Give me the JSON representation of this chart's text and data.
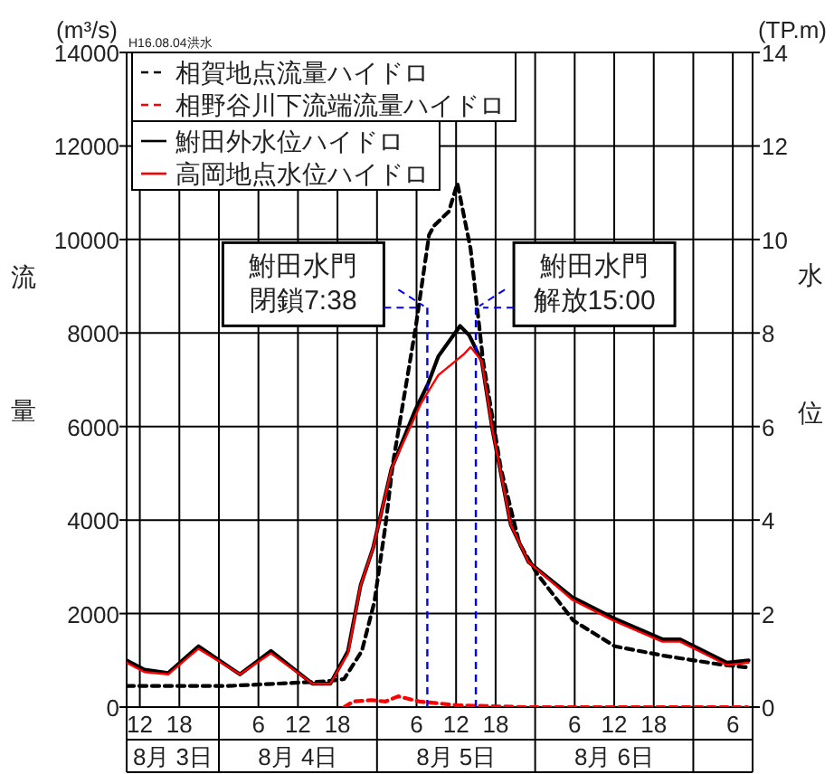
{
  "chart_data": {
    "type": "line",
    "title": "H16.08.04洪水",
    "ylabel": "流量",
    "y2label": "水位",
    "xlim": [
      "--08-03T10:00",
      "--08-07T09:00"
    ],
    "xticks": [
      {
        "value": "--08-03T12:00",
        "label": "12"
      },
      {
        "value": "--08-03T18:00",
        "label": "18"
      },
      {
        "value": "--08-04T00:00",
        "label": null
      },
      {
        "value": "--08-04T06:00",
        "label": "6"
      },
      {
        "value": "--08-04T12:00",
        "label": "12"
      },
      {
        "value": "--08-04T18:00",
        "label": "18"
      },
      {
        "value": "--08-05T00:00",
        "label": null
      },
      {
        "value": "--08-05T06:00",
        "label": "6"
      },
      {
        "value": "--08-05T12:00",
        "label": "12"
      },
      {
        "value": "--08-05T18:00",
        "label": "18"
      },
      {
        "value": "--08-06T00:00",
        "label": null
      },
      {
        "value": "--08-06T06:00",
        "label": "6"
      },
      {
        "value": "--08-06T12:00",
        "label": "12"
      },
      {
        "value": "--08-06T18:00",
        "label": "18"
      },
      {
        "value": "--08-07T00:00",
        "label": null
      },
      {
        "value": "--08-07T06:00",
        "label": "6"
      }
    ],
    "ylim": [
      0,
      14000
    ],
    "yticks": [
      0,
      2000,
      4000,
      6000,
      8000,
      10000,
      12000,
      14000
    ],
    "y2lim": [
      0,
      14
    ],
    "y2ticks": [
      0,
      2,
      4,
      6,
      8,
      10,
      12,
      14
    ],
    "grid": true,
    "legend": "top left",
    "series": [
      {
        "name": "相賀地点流量ハイドロ",
        "color": "#000000",
        "line_style": "dashed",
        "x": [
          "--08-03T10:00",
          "--08-04T01:06",
          "--08-04T16:12",
          "--08-04T19:00",
          "--08-04T21:42",
          "--08-04T23:36",
          "--08-05T01:18",
          "--08-05T02:24",
          "--08-05T05:54",
          "--08-05T07:54",
          "--08-05T08:42",
          "--08-05T10:54",
          "--08-05T12:12",
          "--08-05T14:12",
          "--08-05T16:06",
          "--08-05T18:48",
          "--08-05T21:36",
          "--08-06T00:18",
          "--08-06T05:48",
          "--08-06T12:06",
          "--08-06T19:30",
          "--08-07T04:36",
          "--08-07T08:12"
        ],
        "values": [
          450,
          450,
          550,
          600,
          1200,
          2250,
          3900,
          5200,
          8150,
          10100,
          10300,
          10600,
          11200,
          9800,
          7400,
          5100,
          3500,
          2850,
          1850,
          1300,
          1100,
          900,
          850
        ]
      },
      {
        "name": "相野谷川下流端流量ハイドロ",
        "color": "#ff0000",
        "line_style": "dashed",
        "x": [
          "--08-04T19:00",
          "--08-04T20:24",
          "--08-04T23:06",
          "--08-05T01:18",
          "--08-05T03:12",
          "--08-05T06:24",
          "--08-05T12:12",
          "--08-05T22:00",
          "--08-06T13:00",
          "--08-07T08:12"
        ],
        "values": [
          0,
          120,
          150,
          120,
          230,
          120,
          40,
          0,
          0,
          0
        ]
      },
      {
        "name": "鮒田外水位ハイドロ",
        "color": "#000000",
        "line_style": "solid",
        "axis": "y2",
        "x": [
          "--08-03T10:00",
          "--08-03T12:42",
          "--08-03T16:18",
          "--08-03T20:54",
          "--08-04T03:12",
          "--08-04T07:54",
          "--08-04T14:12",
          "--08-04T16:54",
          "--08-04T19:36",
          "--08-04T21:30",
          "--08-04T23:24",
          "--08-05T02:12",
          "--08-05T05:48",
          "--08-05T07:42",
          "--08-05T09:18",
          "--08-05T12:36",
          "--08-05T14:00",
          "--08-05T15:54",
          "--08-05T17:30",
          "--08-05T20:18",
          "--08-05T23:00",
          "--08-06T05:36",
          "--08-06T11:54",
          "--08-06T19:18",
          "--08-06T22:00",
          "--08-07T05:06",
          "--08-07T08:24"
        ],
        "values": [
          1.0,
          0.8,
          0.73,
          1.3,
          0.7,
          1.2,
          0.5,
          0.5,
          1.2,
          2.6,
          3.4,
          5.1,
          6.35,
          6.9,
          7.5,
          8.15,
          7.95,
          7.4,
          5.95,
          3.9,
          3.1,
          2.35,
          1.9,
          1.45,
          1.45,
          0.95,
          1.0
        ]
      },
      {
        "name": "高岡地点水位ハイドロ",
        "color": "#ff0000",
        "line_style": "solid",
        "axis": "y2",
        "x": [
          "--08-03T10:00",
          "--08-03T12:42",
          "--08-03T16:18",
          "--08-03T20:54",
          "--08-04T03:12",
          "--08-04T07:54",
          "--08-04T14:12",
          "--08-04T16:54",
          "--08-04T19:36",
          "--08-04T21:30",
          "--08-04T23:24",
          "--08-05T02:12",
          "--08-05T06:42",
          "--08-05T09:18",
          "--08-05T13:12",
          "--08-05T14:12",
          "--08-05T15:54",
          "--08-05T17:30",
          "--08-05T20:18",
          "--08-05T23:00",
          "--08-06T05:36",
          "--08-06T11:54",
          "--08-06T19:18",
          "--08-06T22:00",
          "--08-07T05:06",
          "--08-07T08:24"
        ],
        "values": [
          0.95,
          0.75,
          0.7,
          1.25,
          0.7,
          1.15,
          0.5,
          0.5,
          1.15,
          2.6,
          3.4,
          5.1,
          6.5,
          7.1,
          7.55,
          7.7,
          7.4,
          5.95,
          3.9,
          3.1,
          2.3,
          1.85,
          1.4,
          1.4,
          0.9,
          0.95
        ]
      }
    ],
    "ref_lines": [
      {
        "axis": "x",
        "value": "--08-05T07:38",
        "label": "鮒田水門閉鎖7:38",
        "color": "#0000ff",
        "line_style": "dashed"
      },
      {
        "axis": "x",
        "value": "--08-05T15:00",
        "label": "鮒田水門解放15:00",
        "color": "#0000ff",
        "line_style": "dashed"
      }
    ],
    "annotations": [
      "(m³/s)",
      "(TP.m)",
      "8月 3日",
      "8月 4日",
      "8月 5日",
      "8月 6日"
    ]
  }
}
